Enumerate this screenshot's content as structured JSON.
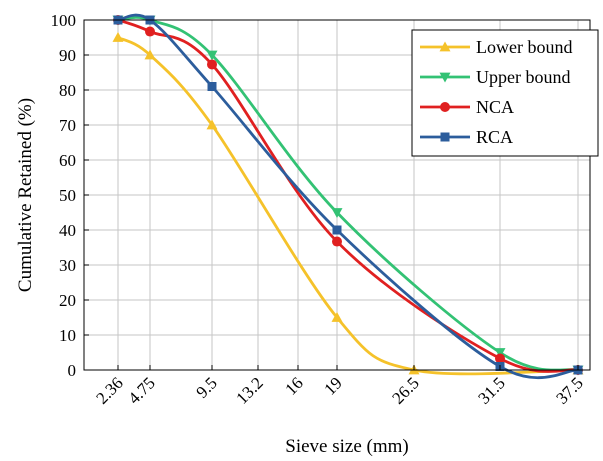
{
  "chart_data": {
    "type": "line",
    "xlabel": "Sieve size (mm)",
    "ylabel": "Cumulative Retained (%)",
    "x_ticks": [
      2.36,
      4.75,
      9.5,
      13.2,
      16,
      19,
      26.5,
      31.5,
      37.5
    ],
    "x_tick_labels": [
      "2.36",
      "4.75",
      "9.5",
      "13.2",
      "16",
      "19",
      "26.5",
      "31.5",
      "37.5"
    ],
    "xlim": [
      0,
      37.5
    ],
    "ylim": [
      0,
      100
    ],
    "y_ticks": [
      0,
      10,
      20,
      30,
      40,
      50,
      60,
      70,
      80,
      90,
      100
    ],
    "grid": true,
    "legend_position": "top-right",
    "series": [
      {
        "name": "Lower bound",
        "color": "#f5c22a",
        "marker": "triangle-up",
        "points": [
          [
            2.36,
            95
          ],
          [
            4.75,
            90
          ],
          [
            9.5,
            70
          ],
          [
            19,
            15
          ],
          [
            26.5,
            0
          ],
          [
            37.5,
            0
          ]
        ]
      },
      {
        "name": "Upper bound",
        "color": "#33c274",
        "marker": "triangle-down",
        "points": [
          [
            2.36,
            100
          ],
          [
            4.75,
            100
          ],
          [
            9.5,
            90
          ],
          [
            19,
            45
          ],
          [
            31.5,
            5
          ],
          [
            37.5,
            0
          ]
        ]
      },
      {
        "name": "NCA",
        "color": "#e02020",
        "marker": "circle",
        "points": [
          [
            2.36,
            100
          ],
          [
            4.75,
            96.7
          ],
          [
            9.5,
            87.3
          ],
          [
            19,
            36.7
          ],
          [
            31.5,
            3.3
          ],
          [
            37.5,
            0
          ]
        ]
      },
      {
        "name": "RCA",
        "color": "#2c5d9c",
        "marker": "square",
        "points": [
          [
            2.36,
            100
          ],
          [
            4.75,
            100
          ],
          [
            9.5,
            81
          ],
          [
            19,
            40
          ],
          [
            31.5,
            1
          ],
          [
            37.5,
            0
          ]
        ]
      }
    ]
  }
}
